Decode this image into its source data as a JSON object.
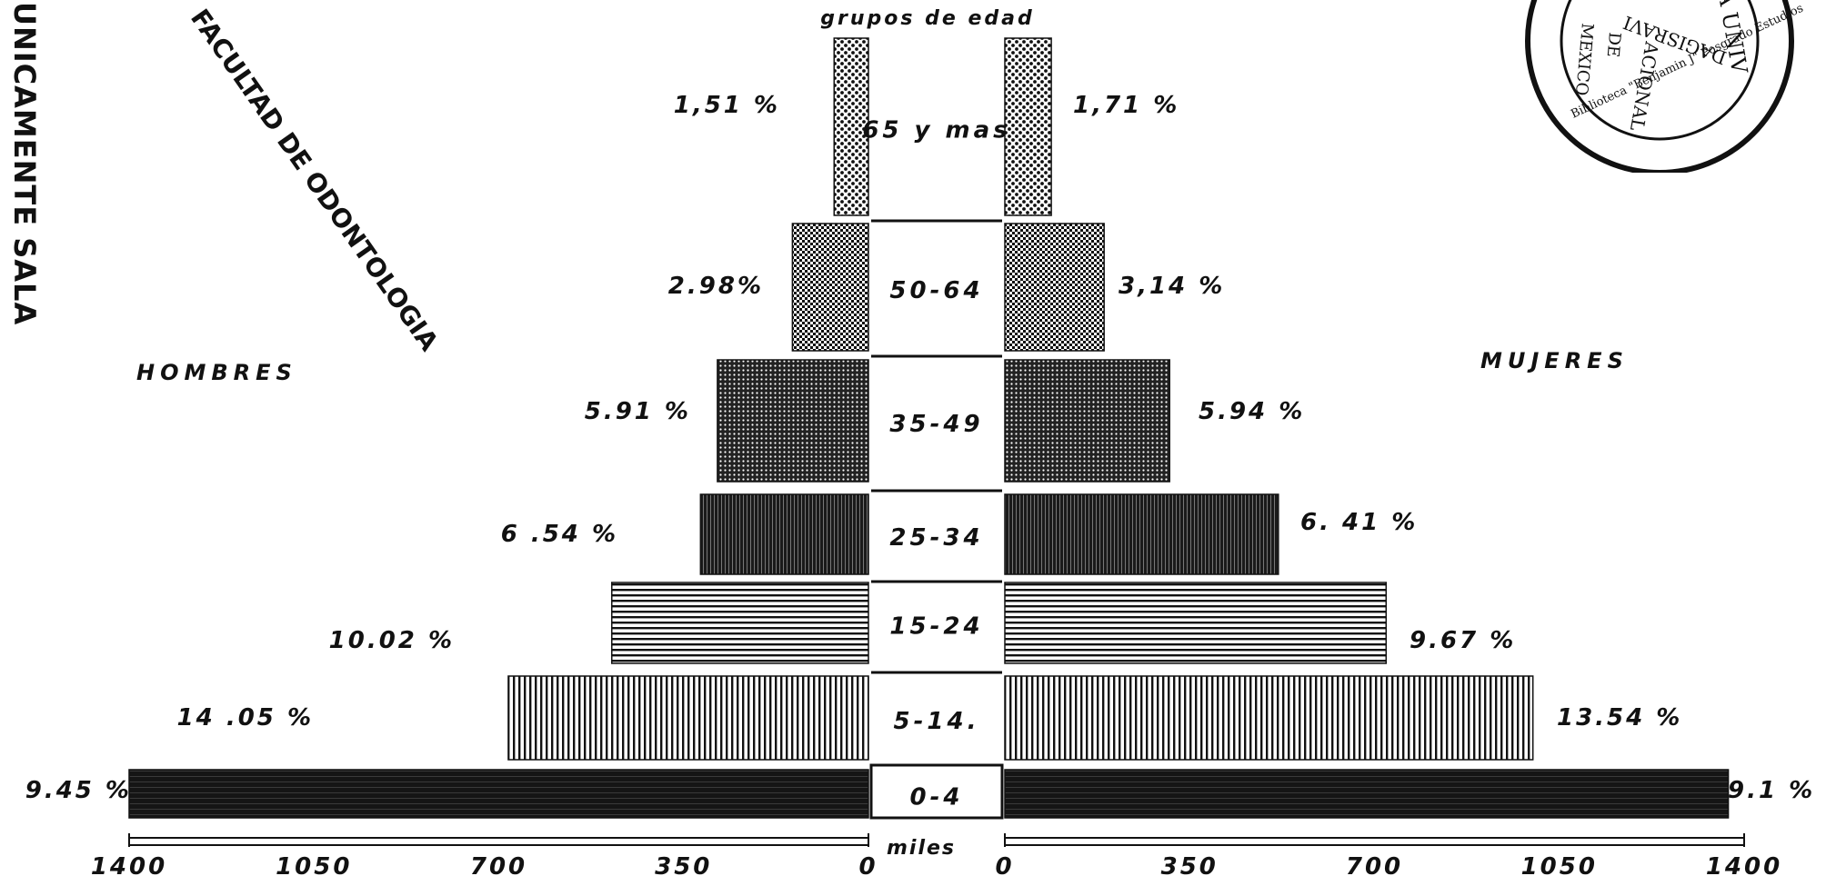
{
  "side_text": "UNICAMENTE SALA",
  "faculty_text": "FACULTAD DE ODONTOLOGIA",
  "stamp": {
    "lines": [
      "ACIONAL",
      "DE",
      "MEXICO",
      "E LA UNIV",
      "DAGISRAVI"
    ],
    "ring_text": "Biblioteca \"Benjamin J\" Posgrado Estudios"
  },
  "colors": {
    "ink": "#111111"
  },
  "chart_data": {
    "type": "bar",
    "orientation": "horizontal",
    "subtype": "population-pyramid",
    "center_header": "grupos de edad",
    "categories": [
      "65 y mas",
      "50-64",
      "35-49",
      "25-34",
      "15-24",
      "5-14.",
      "0-4"
    ],
    "series": [
      {
        "name": "HOMBRES",
        "side": "left",
        "values": [
          65,
          144,
          286,
          318,
          486,
          682,
          1400
        ],
        "percent_labels": [
          "1,51 %",
          "2.98%",
          "5.91 %",
          "6 .54 %",
          "10.02 %",
          "14 .05 %",
          "9.45 %"
        ],
        "patterns": [
          "dots-light",
          "checker",
          "dots-dark",
          "dark-vertical",
          "horizontal-lines",
          "vertical-lines",
          "solid-dark"
        ]
      },
      {
        "name": "MUJERES",
        "side": "right",
        "values": [
          88,
          188,
          312,
          518,
          722,
          1000,
          1370
        ],
        "percent_labels": [
          "1,71 %",
          "3,14 %",
          "5.94 %",
          "6. 41 %",
          "9.67 %",
          "13.54 %",
          "9.1 %"
        ],
        "patterns": [
          "dots-light",
          "checker",
          "dots-dark",
          "dark-vertical",
          "horizontal-lines",
          "vertical-lines",
          "solid-dark"
        ]
      }
    ],
    "x_unit_label": "miles",
    "xlim": [
      0,
      1400
    ],
    "x_ticks_left": [
      "1400",
      "1050",
      "700",
      "350",
      "0"
    ],
    "x_ticks_right": [
      "0",
      "350",
      "700",
      "1050",
      "1400"
    ],
    "grid": false,
    "legend": "none"
  }
}
